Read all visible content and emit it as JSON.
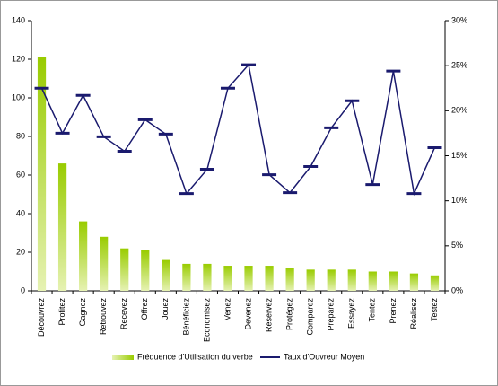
{
  "chart_data": {
    "type": "bar-line",
    "categories": [
      "Découvrez",
      "Profitez",
      "Gagnez",
      "Retrouvez",
      "Recevez",
      "Offrez",
      "Jouez",
      "Bénéficiez",
      "Economisez",
      "Venez",
      "Devenez",
      "Réservez",
      "Protégez",
      "Comparez",
      "Préparez",
      "Essayez",
      "Tentez",
      "Prenez",
      "Réalisez",
      "Testez"
    ],
    "series": [
      {
        "name": "Fréquence d'Utilisation du verbe",
        "color": "#99cc00",
        "type": "bar",
        "values": [
          121,
          66,
          36,
          28,
          22,
          21,
          16,
          14,
          14,
          13,
          13,
          13,
          12,
          11,
          11,
          11,
          10,
          10,
          9,
          8
        ]
      },
      {
        "name": "Taux d'Ouvreur Moyen",
        "color": "#1a1a6e",
        "type": "line",
        "axis": "y2",
        "values": [
          22.5,
          17.5,
          21.7,
          17.1,
          15.5,
          19.0,
          17.4,
          10.8,
          13.5,
          22.5,
          25.1,
          12.9,
          10.9,
          13.8,
          18.1,
          21.1,
          11.8,
          24.4,
          10.8,
          15.9
        ]
      }
    ],
    "ylim": [
      0,
      140
    ],
    "yticks": [
      0,
      20,
      40,
      60,
      80,
      100,
      120,
      140
    ],
    "y2lim": [
      0,
      30
    ],
    "y2ticks": [
      {
        "value": 0,
        "label": "0%"
      },
      {
        "value": 5,
        "label": "5%"
      },
      {
        "value": 10,
        "label": "10%"
      },
      {
        "value": 15,
        "label": "15%"
      },
      {
        "value": 20,
        "label": "20%"
      },
      {
        "value": 25,
        "label": "25%"
      },
      {
        "value": 30,
        "label": "30%"
      }
    ]
  }
}
